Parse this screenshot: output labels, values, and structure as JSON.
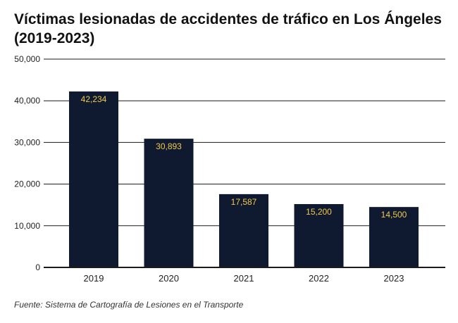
{
  "title": "Víctimas lesionadas de accidentes de tráfico en Los Ángeles (2019-2023)",
  "source": "Fuente: Sistema de Cartografía de Lesiones en el Transporte",
  "colors": {
    "bar": "#0f1a30",
    "label": "#f2c94c",
    "grid": "#1a1a1a",
    "text": "#222222"
  },
  "chart_data": {
    "type": "bar",
    "title": "Víctimas lesionadas de accidentes de tráfico en Los Ángeles (2019-2023)",
    "categories": [
      "2019",
      "2020",
      "2021",
      "2022",
      "2023"
    ],
    "values": [
      42234,
      30893,
      17587,
      15200,
      14500
    ],
    "value_labels": [
      "42,234",
      "30,893",
      "17,587",
      "15,200",
      "14,500"
    ],
    "ylim": [
      0,
      50000
    ],
    "yticks": [
      0,
      10000,
      20000,
      30000,
      40000,
      50000
    ],
    "ytick_labels": [
      "0",
      "10,000",
      "20,000",
      "30,000",
      "40,000",
      "50,000"
    ],
    "xlabel": "",
    "ylabel": "",
    "grid": true,
    "legend": "none"
  }
}
